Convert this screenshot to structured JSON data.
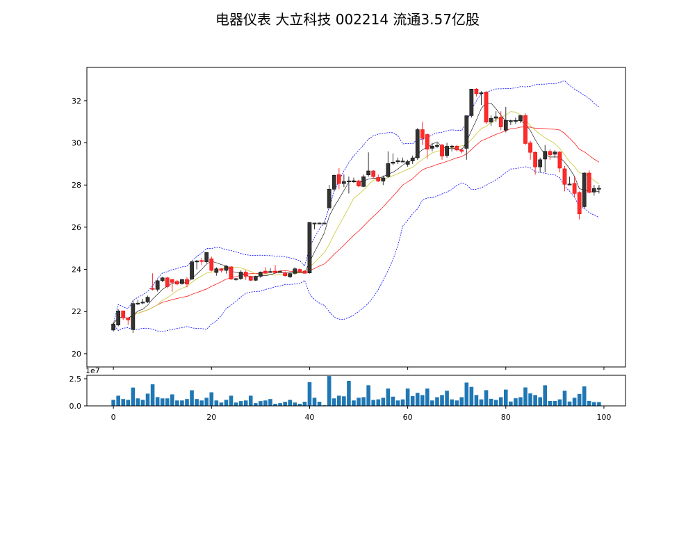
{
  "chart_data": [
    {
      "type": "candlestick",
      "title": "电器仪表 大立科技 002214 流通3.57亿股",
      "xlim": [
        -5.4,
        104.4
      ],
      "ylim": [
        19.37,
        33.58
      ],
      "xticks": [
        0,
        20,
        40,
        60,
        80,
        100
      ],
      "yticks": [
        20,
        22,
        24,
        26,
        28,
        30,
        32
      ],
      "grid": false,
      "colors": {
        "up": "#333333",
        "down": "#ff2a2a",
        "ma_short": "#000000",
        "ma_mid": "#c8c832",
        "ma_long": "#ff0000",
        "bands": "#0000ff"
      },
      "overlays": [
        "moving average 5",
        "moving average 10",
        "moving average 20",
        "bollinger bands 20, 2σ"
      ],
      "ohlc_fields": [
        "open",
        "high",
        "low",
        "close"
      ],
      "candles": [
        [
          21.12,
          21.5,
          21.05,
          21.41
        ],
        [
          21.36,
          22.1,
          21.3,
          22.03
        ],
        [
          22.03,
          22.05,
          21.6,
          21.7
        ],
        [
          21.7,
          21.72,
          21.36,
          21.6
        ],
        [
          21.14,
          22.55,
          20.98,
          22.38
        ],
        [
          22.38,
          22.55,
          22.3,
          22.4
        ],
        [
          22.42,
          22.6,
          22.35,
          22.45
        ],
        [
          22.45,
          22.75,
          22.4,
          22.68
        ],
        [
          23.1,
          23.81,
          23.0,
          23.07
        ],
        [
          23.05,
          23.5,
          22.95,
          23.46
        ],
        [
          23.46,
          23.65,
          23.4,
          23.6
        ],
        [
          23.6,
          23.65,
          23.1,
          23.18
        ],
        [
          23.52,
          23.55,
          22.94,
          23.38
        ],
        [
          23.43,
          23.5,
          23.25,
          23.3
        ],
        [
          23.32,
          23.55,
          23.28,
          23.52
        ],
        [
          23.52,
          23.62,
          23.15,
          23.3
        ],
        [
          23.54,
          24.4,
          23.5,
          24.36
        ],
        [
          24.38,
          24.45,
          24.0,
          24.4
        ],
        [
          24.42,
          24.55,
          24.2,
          24.4
        ],
        [
          24.36,
          24.82,
          24.3,
          24.8
        ],
        [
          24.5,
          24.6,
          23.9,
          23.95
        ],
        [
          23.85,
          24.1,
          23.7,
          24.03
        ],
        [
          24.03,
          24.05,
          23.85,
          23.95
        ],
        [
          23.95,
          24.2,
          23.8,
          24.15
        ],
        [
          24.12,
          24.15,
          23.5,
          23.54
        ],
        [
          23.56,
          23.6,
          23.45,
          23.56
        ],
        [
          23.56,
          23.95,
          23.5,
          23.87
        ],
        [
          23.87,
          23.95,
          23.5,
          23.67
        ],
        [
          23.67,
          23.7,
          23.45,
          23.48
        ],
        [
          23.48,
          23.7,
          23.45,
          23.67
        ],
        [
          23.67,
          23.9,
          23.6,
          23.87
        ],
        [
          23.92,
          24.1,
          23.8,
          23.81
        ],
        [
          23.9,
          24.05,
          23.85,
          23.9
        ],
        [
          23.92,
          24.2,
          23.8,
          23.84
        ],
        [
          23.9,
          23.95,
          23.85,
          23.9
        ],
        [
          23.84,
          23.9,
          23.65,
          23.7
        ],
        [
          23.64,
          23.85,
          23.6,
          23.8
        ],
        [
          23.81,
          24.1,
          23.75,
          24.03
        ],
        [
          24.0,
          24.05,
          23.85,
          23.87
        ],
        [
          23.92,
          23.95,
          23.8,
          23.81
        ],
        [
          23.83,
          26.23,
          23.8,
          26.23
        ],
        [
          26.2,
          26.2,
          25.9,
          26.2
        ],
        [
          26.2,
          26.22,
          26.15,
          26.2
        ],
        [
          26.2,
          26.22,
          26.15,
          26.2
        ],
        [
          26.91,
          28.0,
          26.9,
          27.8
        ],
        [
          27.8,
          28.5,
          27.7,
          28.46
        ],
        [
          28.5,
          28.8,
          27.8,
          28.07
        ],
        [
          28.07,
          28.5,
          27.9,
          28.17
        ],
        [
          28.2,
          28.4,
          27.6,
          28.2
        ],
        [
          28.2,
          28.35,
          28.1,
          28.2
        ],
        [
          28.2,
          28.25,
          27.9,
          27.95
        ],
        [
          27.93,
          28.5,
          27.9,
          28.4
        ],
        [
          28.48,
          29.55,
          28.4,
          28.67
        ],
        [
          28.67,
          28.7,
          28.3,
          28.4
        ],
        [
          28.36,
          28.5,
          28.15,
          28.18
        ],
        [
          28.18,
          28.45,
          28.0,
          28.34
        ],
        [
          28.4,
          29.6,
          28.35,
          29.02
        ],
        [
          29.03,
          29.5,
          28.95,
          29.09
        ],
        [
          29.1,
          29.3,
          29.0,
          29.16
        ],
        [
          29.14,
          29.3,
          29.1,
          29.14
        ],
        [
          28.98,
          29.2,
          28.87,
          29.11
        ],
        [
          29.14,
          29.4,
          29.0,
          29.29
        ],
        [
          29.29,
          30.7,
          29.2,
          30.63
        ],
        [
          30.63,
          31.0,
          29.9,
          30.21
        ],
        [
          30.4,
          30.45,
          29.25,
          29.7
        ],
        [
          29.74,
          30.0,
          29.6,
          29.85
        ],
        [
          29.88,
          30.0,
          29.75,
          29.88
        ],
        [
          29.9,
          29.95,
          29.2,
          29.37
        ],
        [
          29.4,
          30.0,
          29.3,
          29.84
        ],
        [
          29.85,
          29.9,
          29.6,
          29.85
        ],
        [
          29.85,
          29.9,
          29.6,
          29.66
        ],
        [
          29.66,
          29.75,
          29.5,
          29.6
        ],
        [
          29.74,
          31.3,
          29.2,
          31.29
        ],
        [
          31.29,
          32.55,
          31.2,
          32.55
        ],
        [
          32.55,
          32.6,
          32.2,
          32.33
        ],
        [
          32.38,
          32.45,
          31.8,
          32.38
        ],
        [
          32.41,
          32.45,
          30.9,
          30.98
        ],
        [
          30.98,
          31.3,
          30.8,
          31.17
        ],
        [
          31.17,
          31.5,
          31.0,
          31.24
        ],
        [
          31.22,
          31.5,
          30.6,
          30.76
        ],
        [
          30.6,
          31.7,
          30.5,
          31.07
        ],
        [
          31.05,
          31.1,
          30.85,
          31.05
        ],
        [
          31.05,
          31.2,
          30.9,
          31.07
        ],
        [
          31.05,
          31.3,
          30.95,
          31.3
        ],
        [
          31.3,
          31.4,
          29.9,
          29.97
        ],
        [
          30.0,
          30.1,
          29.2,
          29.55
        ],
        [
          29.55,
          29.6,
          28.5,
          28.86
        ],
        [
          28.86,
          29.3,
          28.6,
          29.2
        ],
        [
          29.23,
          29.9,
          28.6,
          29.6
        ],
        [
          29.6,
          29.7,
          29.2,
          29.43
        ],
        [
          29.46,
          29.65,
          29.3,
          29.57
        ],
        [
          29.57,
          29.6,
          28.6,
          28.8
        ],
        [
          28.77,
          28.9,
          27.7,
          28.03
        ],
        [
          28.05,
          28.4,
          28.0,
          28.05
        ],
        [
          28.08,
          28.4,
          27.4,
          27.6
        ],
        [
          27.65,
          27.7,
          26.37,
          26.63
        ],
        [
          26.97,
          28.6,
          26.9,
          28.57
        ],
        [
          28.57,
          28.7,
          27.6,
          27.65
        ],
        [
          27.67,
          28.0,
          27.5,
          27.84
        ],
        [
          27.85,
          28.0,
          27.6,
          27.85
        ]
      ]
    },
    {
      "type": "bar",
      "ylim": [
        0,
        2.82
      ],
      "yticks": [
        0.0,
        2.5
      ],
      "ytick_labels": [
        "0.0",
        "2.5"
      ],
      "offset_text": "1e7",
      "xticks": [
        0,
        20,
        40,
        60,
        80,
        100
      ],
      "color": "#1f77b4",
      "values": [
        0.56,
        0.94,
        0.63,
        0.56,
        1.69,
        0.69,
        0.56,
        1.13,
        2.0,
        0.81,
        0.69,
        0.69,
        1.06,
        0.5,
        0.5,
        0.63,
        1.44,
        0.63,
        0.5,
        0.75,
        1.25,
        0.5,
        0.31,
        0.56,
        0.94,
        0.31,
        0.44,
        0.5,
        0.94,
        0.25,
        0.44,
        0.5,
        0.63,
        0.19,
        0.25,
        0.38,
        0.56,
        0.31,
        0.19,
        0.38,
        2.19,
        0.75,
        0.38,
        0.06,
        2.75,
        0.69,
        0.94,
        0.88,
        2.31,
        0.5,
        0.75,
        0.8,
        1.9,
        0.55,
        0.6,
        0.75,
        1.6,
        0.85,
        0.5,
        0.6,
        1.6,
        0.9,
        1.2,
        1.0,
        1.6,
        0.5,
        0.8,
        1.0,
        1.4,
        0.6,
        0.5,
        0.8,
        2.15,
        1.75,
        1.0,
        0.6,
        1.45,
        0.65,
        0.55,
        0.8,
        1.5,
        0.4,
        0.7,
        0.8,
        1.7,
        1.15,
        1.0,
        0.8,
        1.9,
        0.45,
        0.45,
        0.6,
        1.4,
        0.4,
        0.75,
        1.1,
        1.8,
        0.45,
        0.35,
        0.35
      ]
    }
  ]
}
